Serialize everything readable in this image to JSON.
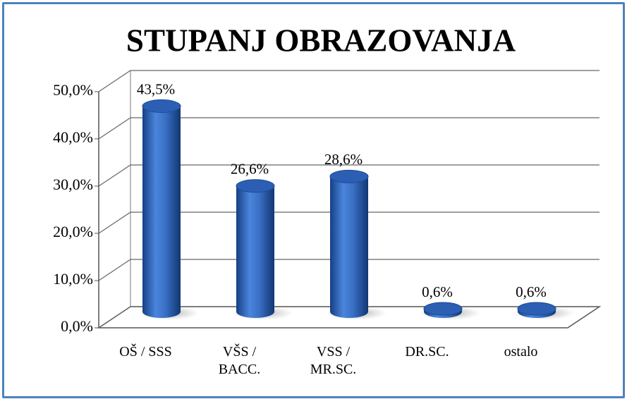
{
  "chart_data": {
    "type": "bar",
    "title": "STUPANJ OBRAZOVANJA",
    "categories": [
      "OŠ / SSS",
      "VŠS / BACC.",
      "VSS / MR.SC.",
      "DR.SC.",
      "ostalo"
    ],
    "values": [
      43.5,
      26.6,
      28.6,
      0.6,
      0.6
    ],
    "value_labels": [
      "43,5%",
      "26,6%",
      "28,6%",
      "0,6%",
      "0,6%"
    ],
    "color": "#2f62b8",
    "ylim": [
      0,
      50
    ],
    "yticks": [
      {
        "value": 0,
        "label": "0,0%"
      },
      {
        "value": 10,
        "label": "10,0%"
      },
      {
        "value": 20,
        "label": "20,0%"
      },
      {
        "value": 30,
        "label": "30,0%"
      },
      {
        "value": 40,
        "label": "40,0%"
      },
      {
        "value": 50,
        "label": "50,0%"
      }
    ],
    "grid": true
  }
}
